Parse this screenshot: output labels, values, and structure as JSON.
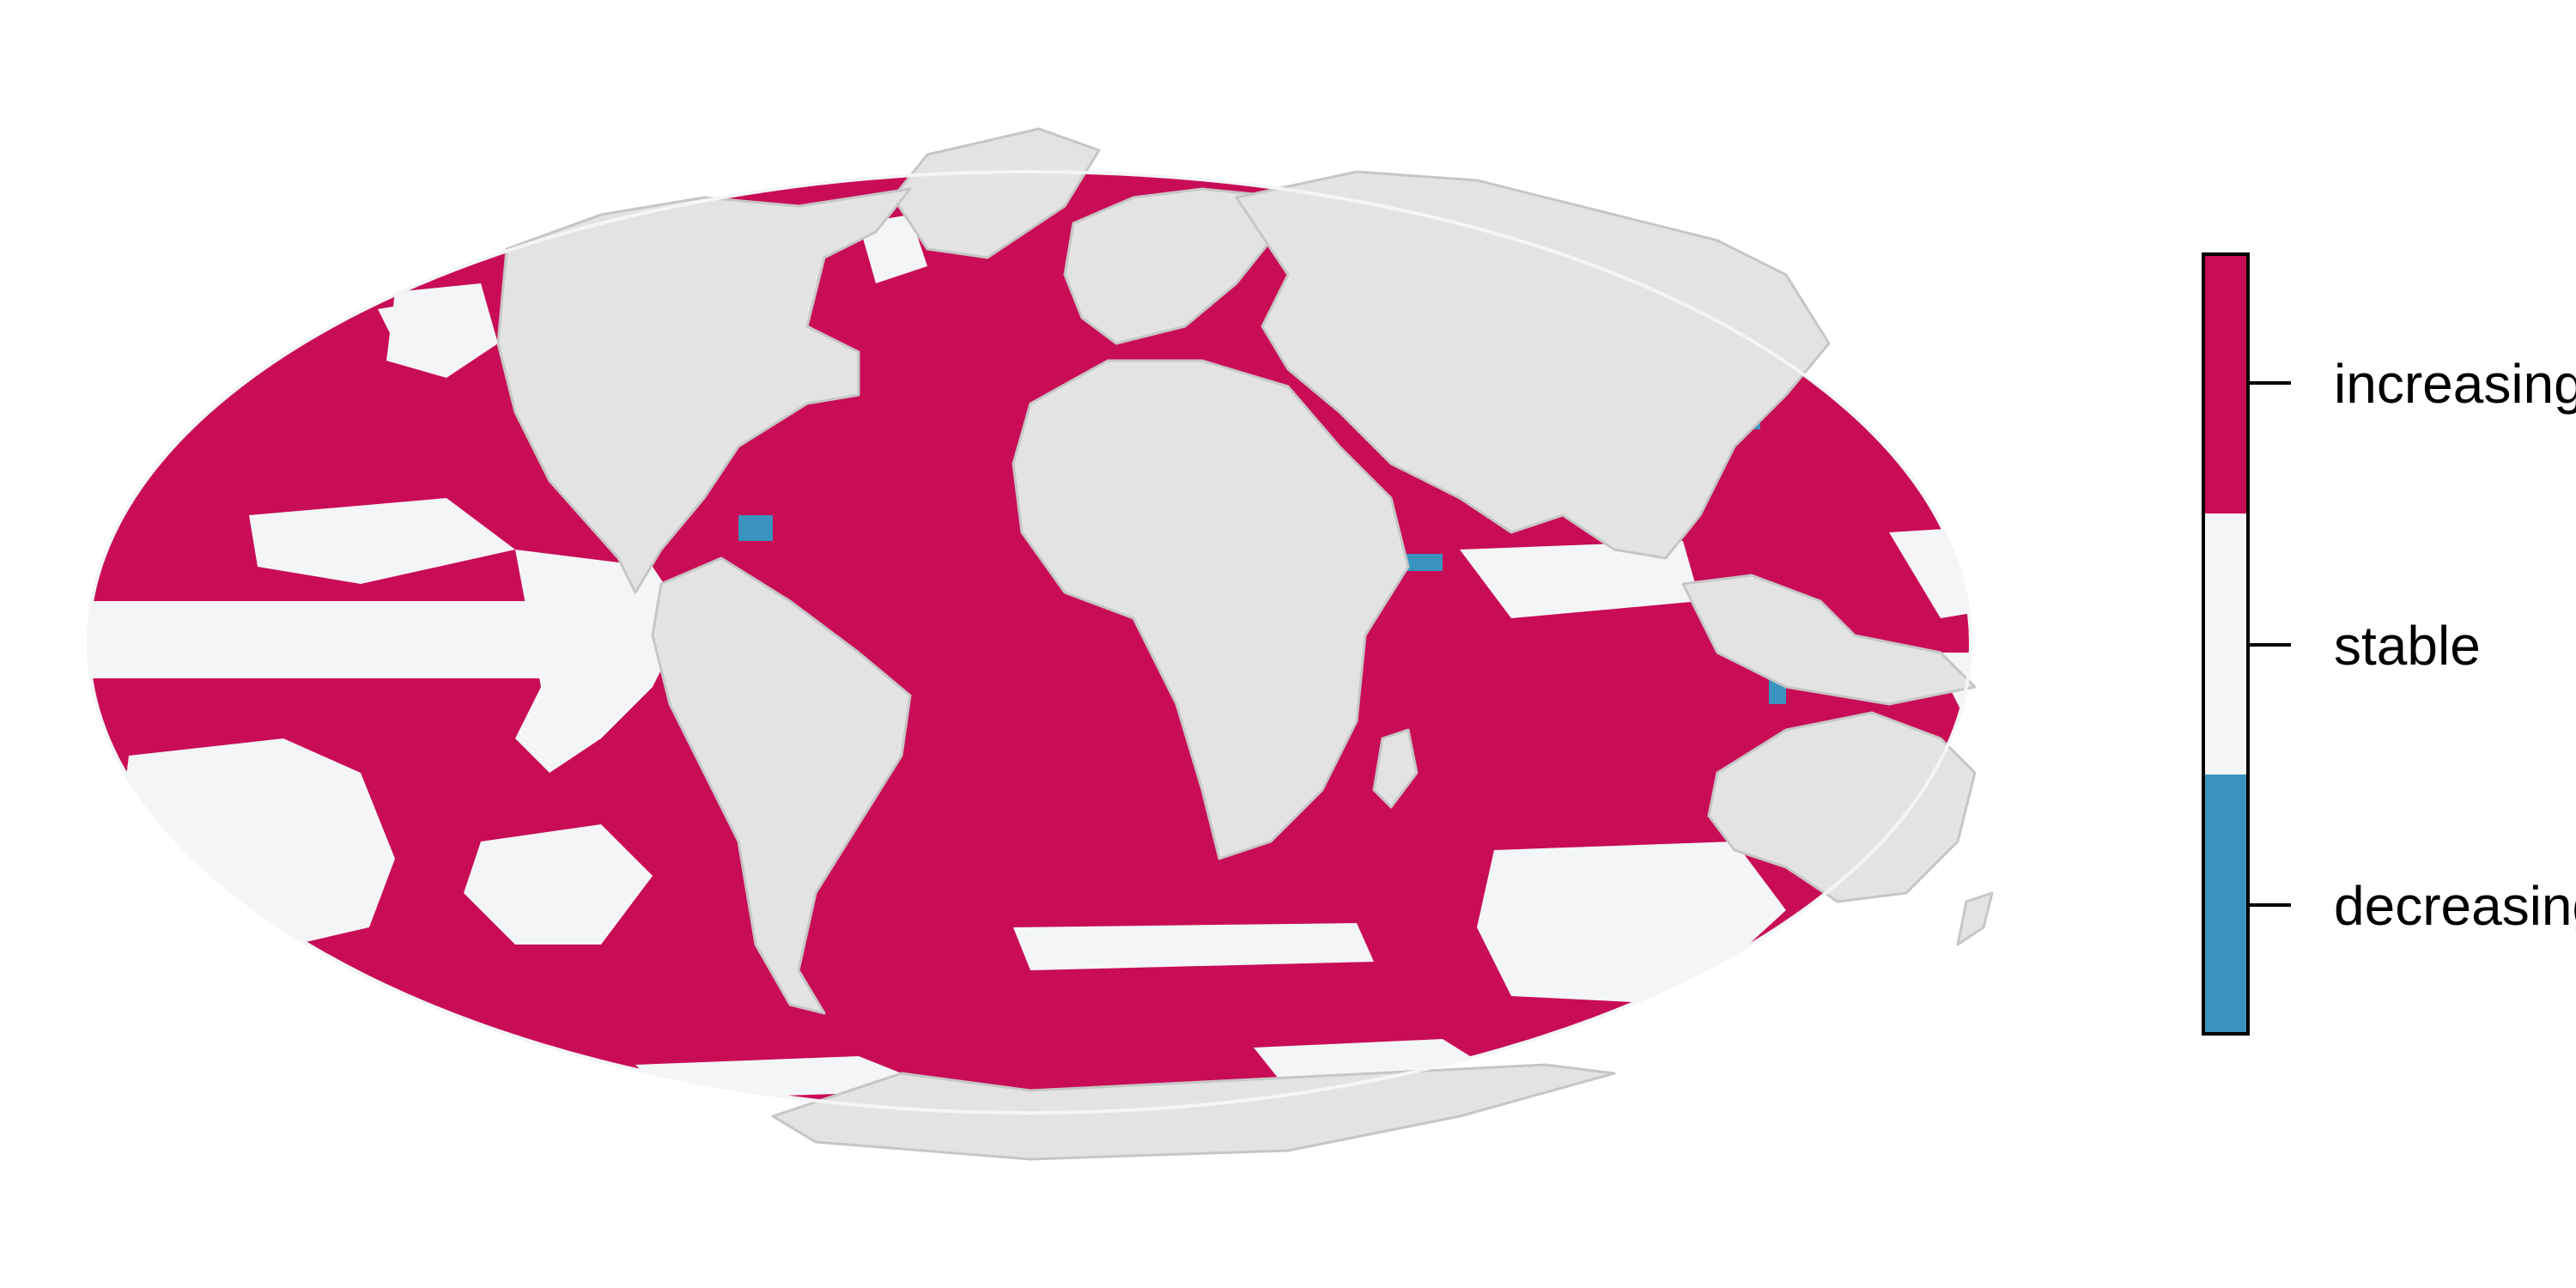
{
  "map": {
    "projection": "Mollweide",
    "colors": {
      "increasing": "#c90c56",
      "stable": "#f3f5f7",
      "decreasing": "#3a93bf",
      "land": "#e3e3e3",
      "land_border": "#c6c6c6",
      "ocean_rim": "#f3f5f7"
    }
  },
  "legend": {
    "items": [
      {
        "key": "increasing",
        "label": "increasing",
        "color": "#c90c56"
      },
      {
        "key": "stable",
        "label": "stable",
        "color": "#f3f5f7"
      },
      {
        "key": "decreasing",
        "label": "decreasing",
        "color": "#3a93bf"
      }
    ]
  }
}
